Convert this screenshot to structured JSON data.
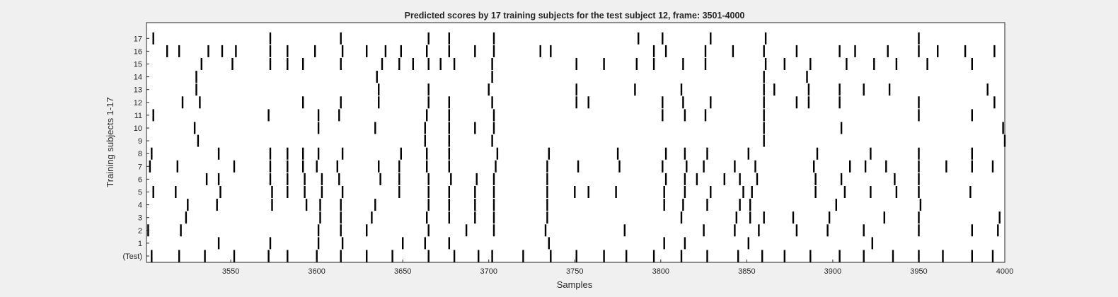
{
  "chart_data": {
    "type": "event-raster",
    "title": "Predicted scores by 17 training subjects for the test subject 12, frame: 3501-4000",
    "xlabel": "Samples",
    "ylabel": "Training subjects 1-17",
    "xlim": [
      3501,
      4000
    ],
    "xticks": [
      3550,
      3600,
      3650,
      3700,
      3750,
      3800,
      3850,
      3900,
      3950,
      4000
    ],
    "grid": false,
    "colors": {
      "background": "#f0f0f0",
      "axes": "#ffffff",
      "marks": "#000000",
      "axis_line": "#262626"
    },
    "rows": [
      {
        "label": "(Test)",
        "x": [
          3504,
          3520,
          3535,
          3552,
          3572,
          3583,
          3600,
          3614,
          3629,
          3644,
          3665,
          3680,
          3694,
          3702,
          3720,
          3736,
          3751,
          3767,
          3780,
          3796,
          3812,
          3827,
          3845,
          3859,
          3872,
          3887,
          3904,
          3918,
          3935,
          3950,
          3964,
          3981,
          3993
        ]
      },
      {
        "label": "1",
        "x": [
          3543,
          3573,
          3601,
          3615,
          3650,
          3663,
          3677,
          3735,
          3802,
          3814,
          3851,
          3923
        ]
      },
      {
        "label": "2",
        "x": [
          3502,
          3521,
          3601,
          3614,
          3629,
          3665,
          3687,
          3703,
          3733,
          3779,
          3825,
          3843,
          3857,
          3879,
          3897,
          3918,
          3950,
          3981,
          3996
        ]
      },
      {
        "label": "3",
        "x": [
          3524,
          3602,
          3614,
          3632,
          3664,
          3677,
          3692,
          3703,
          3734,
          3812,
          3844,
          3852,
          3860,
          3877,
          3898,
          3930,
          3950,
          3997
        ]
      },
      {
        "label": "4",
        "x": [
          3525,
          3542,
          3574,
          3594,
          3602,
          3614,
          3634,
          3665,
          3677,
          3692,
          3703,
          3734,
          3802,
          3813,
          3827,
          3846,
          3852,
          3902,
          3951
        ]
      },
      {
        "label": "5",
        "x": [
          3505,
          3518,
          3544,
          3574,
          3583,
          3593,
          3603,
          3615,
          3648,
          3665,
          3677,
          3692,
          3703,
          3734,
          3750,
          3758,
          3774,
          3802,
          3814,
          3829,
          3848,
          3853,
          3890,
          3907,
          3922,
          3937,
          3950,
          3980
        ]
      },
      {
        "label": "6",
        "x": [
          3536,
          3543,
          3573,
          3583,
          3593,
          3603,
          3613,
          3637,
          3648,
          3665,
          3678,
          3693,
          3703,
          3734,
          3803,
          3814,
          3821,
          3837,
          3846,
          3856,
          3890,
          3905,
          3936,
          3950
        ]
      },
      {
        "label": "7",
        "x": [
          3503,
          3519,
          3552,
          3573,
          3583,
          3592,
          3600,
          3612,
          3636,
          3648,
          3664,
          3677,
          3704,
          3734,
          3752,
          3776,
          3801,
          3815,
          3825,
          3843,
          3855,
          3889,
          3910,
          3919,
          3931,
          3950,
          3966,
          3981,
          3993
        ]
      },
      {
        "label": "8",
        "x": [
          3504,
          3543,
          3573,
          3583,
          3592,
          3601,
          3615,
          3649,
          3664,
          3677,
          3705,
          3735,
          3775,
          3803,
          3814,
          3827,
          3851,
          3891,
          3922,
          3950,
          3981
        ]
      },
      {
        "label": "9",
        "x": [
          3531,
          3663,
          3677,
          3702,
          3860,
          4000
        ]
      },
      {
        "label": "10",
        "x": [
          3529,
          3601,
          3634,
          3663,
          3677,
          3692,
          3703,
          3860,
          3905,
          3999
        ]
      },
      {
        "label": "11",
        "x": [
          3505,
          3572,
          3601,
          3613,
          3664,
          3677,
          3703,
          3801,
          3814,
          3826,
          3860,
          3950,
          3981
        ]
      },
      {
        "label": "12",
        "x": [
          3522,
          3532,
          3592,
          3614,
          3636,
          3665,
          3677,
          3702,
          3751,
          3758,
          3801,
          3813,
          3829,
          3860,
          3879,
          3886,
          3904,
          3950,
          3994
        ]
      },
      {
        "label": "13",
        "x": [
          3530,
          3636,
          3665,
          3700,
          3751,
          3785,
          3812,
          3860,
          3866,
          3886,
          3904,
          3918,
          3933,
          3990
        ]
      },
      {
        "label": "14",
        "x": [
          3530,
          3635,
          3702,
          3860,
          3885
        ]
      },
      {
        "label": "15",
        "x": [
          3533,
          3551,
          3573,
          3583,
          3592,
          3614,
          3638,
          3648,
          3656,
          3665,
          3672,
          3680,
          3702,
          3751,
          3767,
          3786,
          3796,
          3813,
          3826,
          3861,
          3872,
          3887,
          3908,
          3924,
          3937,
          3955,
          3981
        ]
      },
      {
        "label": "16",
        "x": [
          3513,
          3520,
          3537,
          3545,
          3553,
          3573,
          3583,
          3599,
          3615,
          3629,
          3640,
          3649,
          3664,
          3677,
          3692,
          3703,
          3730,
          3736,
          3796,
          3803,
          3826,
          3842,
          3860,
          3879,
          3904,
          3913,
          3932,
          3950,
          3961,
          3977,
          3994
        ]
      },
      {
        "label": "17",
        "x": [
          3505,
          3573,
          3614,
          3665,
          3677,
          3703,
          3787,
          3801,
          3829,
          3861,
          3950
        ]
      }
    ]
  }
}
